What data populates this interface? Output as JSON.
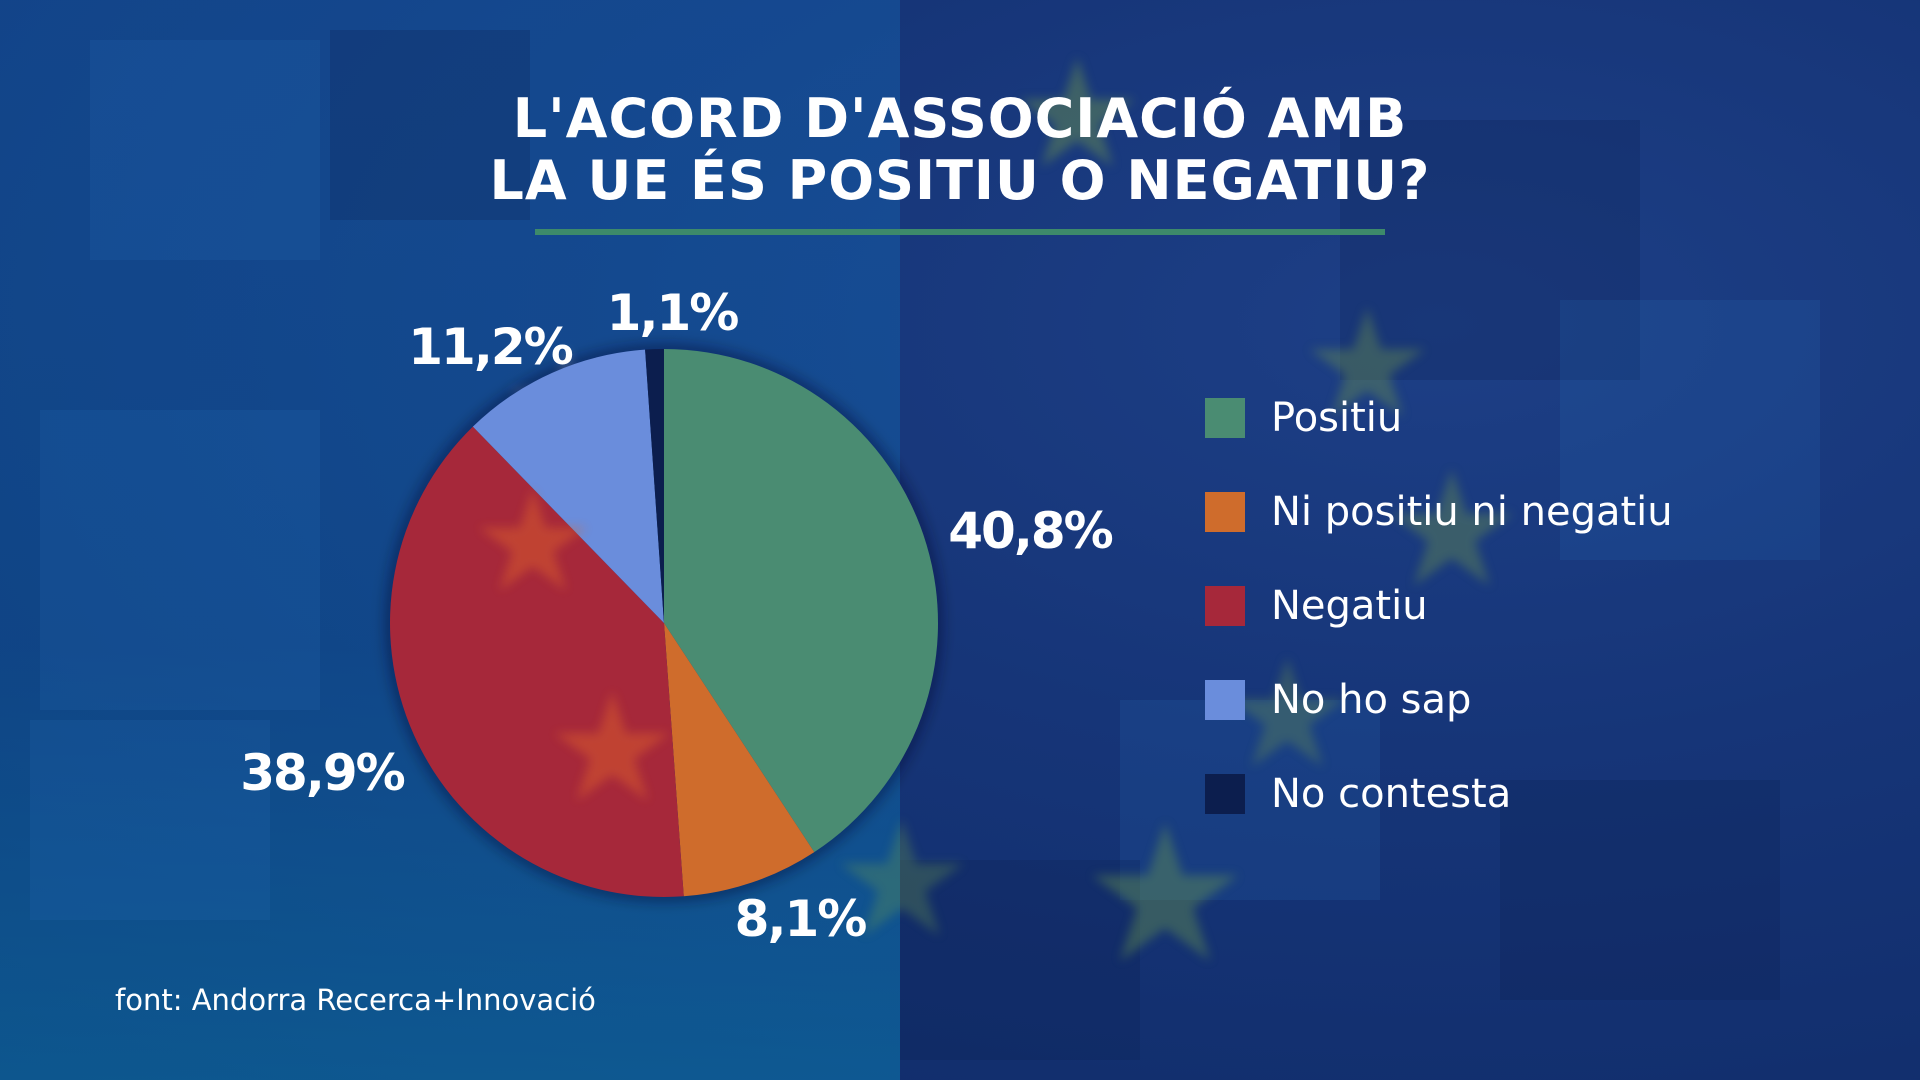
{
  "title_line1": "L'ACORD D'ASSOCIACIÓ AMB",
  "title_line2": "LA UE ÉS POSITIU O NEGATIU?",
  "source": "font: Andorra Recerca+Innovació",
  "chart_data": {
    "type": "pie",
    "title": "L'ACORD D'ASSOCIACIÓ AMB LA UE ÉS POSITIU O NEGATIU?",
    "slices": [
      {
        "name": "Positiu",
        "value": 40.8,
        "label": "40,8%",
        "color": "#4a8c72"
      },
      {
        "name": "Ni positiu ni negatiu",
        "value": 8.1,
        "label": "8,1%",
        "color": "#cf6c2c"
      },
      {
        "name": "Negatiu",
        "value": 38.9,
        "label": "38,9%",
        "color": "#a6283a"
      },
      {
        "name": "No ho sap",
        "value": 11.2,
        "label": "11,2%",
        "color": "#6a8ddc"
      },
      {
        "name": "No contesta",
        "value": 1.1,
        "label": "1,1%",
        "color": "#0c1e4e"
      }
    ],
    "legend_position": "right"
  }
}
